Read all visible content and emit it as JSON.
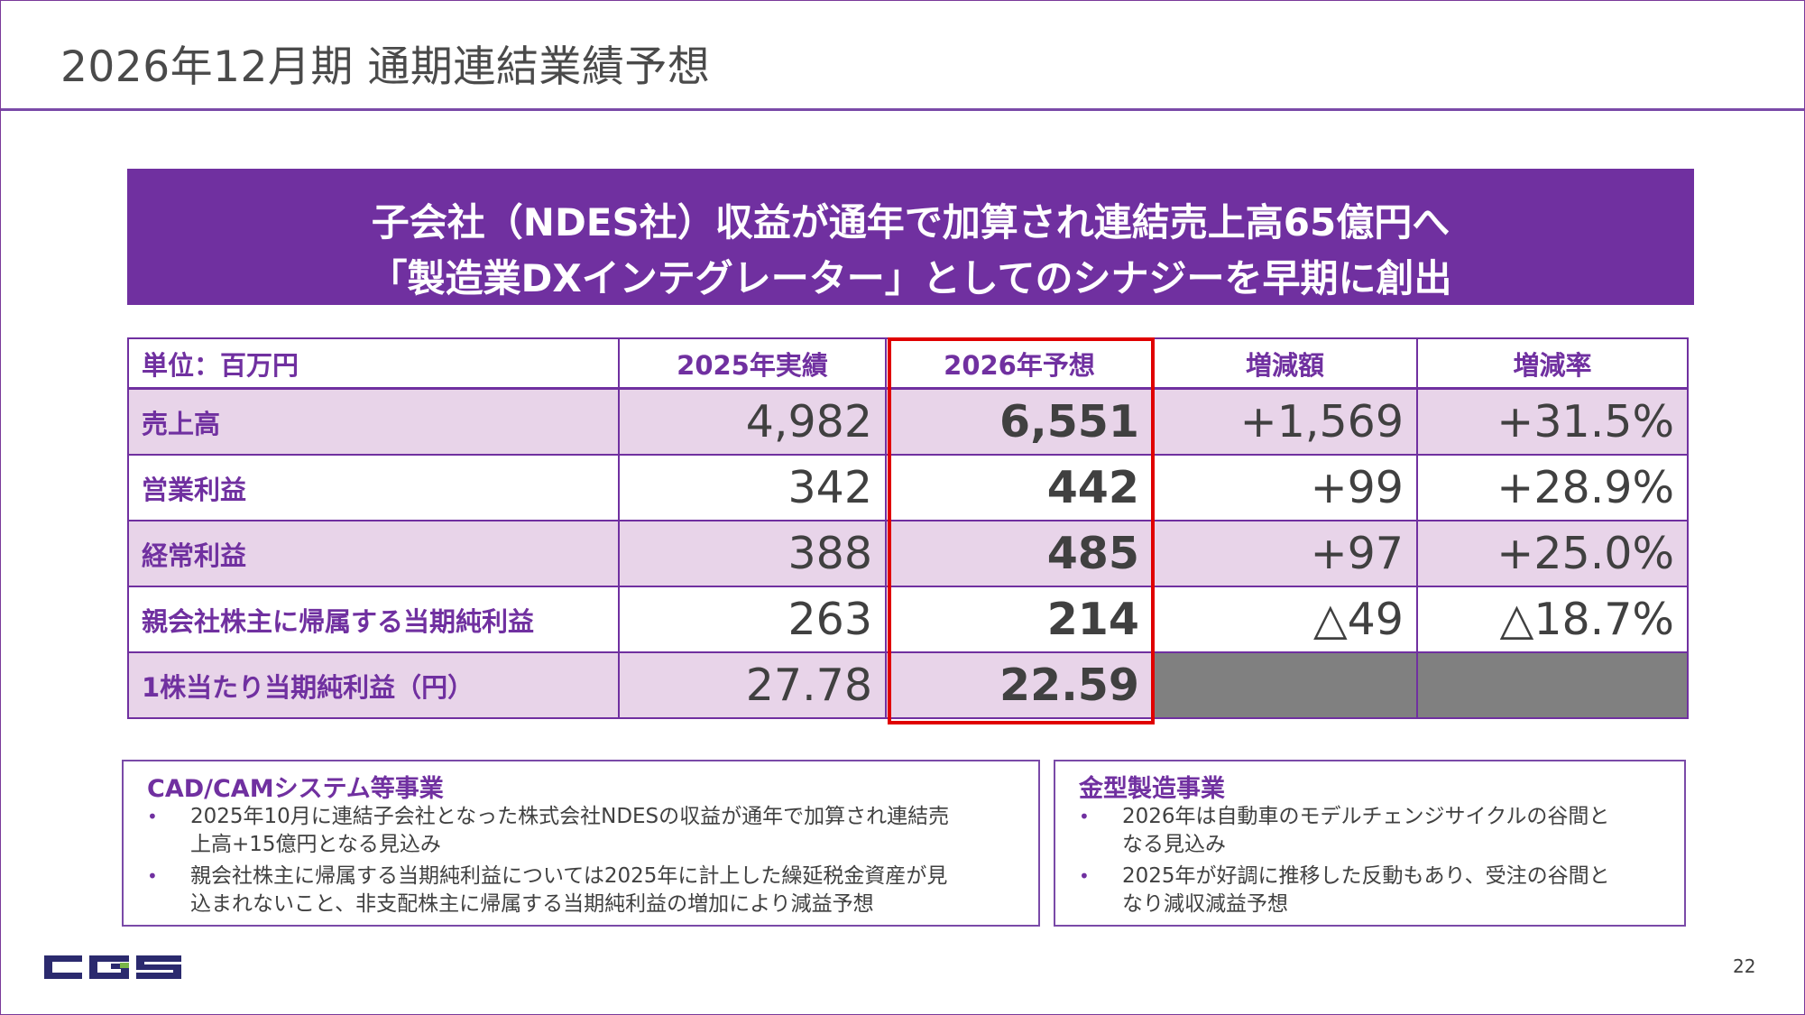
{
  "title": "2026年12月期 通期連結業績予想",
  "banner": {
    "line1": "子会社（NDES社）収益が通年で加算され連結売上高65億円へ",
    "line2": "「製造業DXインテグレーター」としてのシナジーを早期に創出"
  },
  "table": {
    "headers": [
      "単位：百万円",
      "2025年実績",
      "2026年予想",
      "増減額",
      "増減率"
    ],
    "rows": [
      {
        "label": "売上高",
        "actual_2025": "4,982",
        "forecast_2026": "6,551",
        "change_amount": "+1,569",
        "change_rate": "+31.5%"
      },
      {
        "label": "営業利益",
        "actual_2025": "342",
        "forecast_2026": "442",
        "change_amount": "+99",
        "change_rate": "+28.9%"
      },
      {
        "label": "経常利益",
        "actual_2025": "388",
        "forecast_2026": "485",
        "change_amount": "+97",
        "change_rate": "+25.0%"
      },
      {
        "label": "親会社株主に帰属する当期純利益",
        "actual_2025": "263",
        "forecast_2026": "214",
        "change_amount": "△49",
        "change_rate": "△18.7%"
      },
      {
        "label": "1株当たり当期純利益（円）",
        "actual_2025": "27.78",
        "forecast_2026": "22.59",
        "change_amount": "",
        "change_rate": ""
      }
    ]
  },
  "segments": {
    "cadcam": {
      "title": "CAD/CAMシステム等事業",
      "bullets": [
        "2025年10月に連結子会社となった株式会社NDESの収益が通年で加算され連結売\n上高+15億円となる見込み",
        "親会社株主に帰属する当期純利益については2025年に計上した繰延税金資産が見\n込まれないこと、非支配株主に帰属する当期純利益の増加により減益予想"
      ]
    },
    "mold": {
      "title": "金型製造事業",
      "bullets": [
        "2026年は自動車のモデルチェンジサイクルの谷間と\nなる見込み",
        "2025年が好調に推移した反動もあり、受注の谷間と\nなり減収減益予想"
      ]
    }
  },
  "logo": {
    "text": "CGS",
    "color": "#2b2a6e",
    "accent": "#7ab648"
  },
  "page_number": "22",
  "colors": {
    "purple": "#7030a0",
    "row_shade": "#e8d4e9",
    "highlight_border": "#e00000",
    "gray_cell": "#808080"
  }
}
